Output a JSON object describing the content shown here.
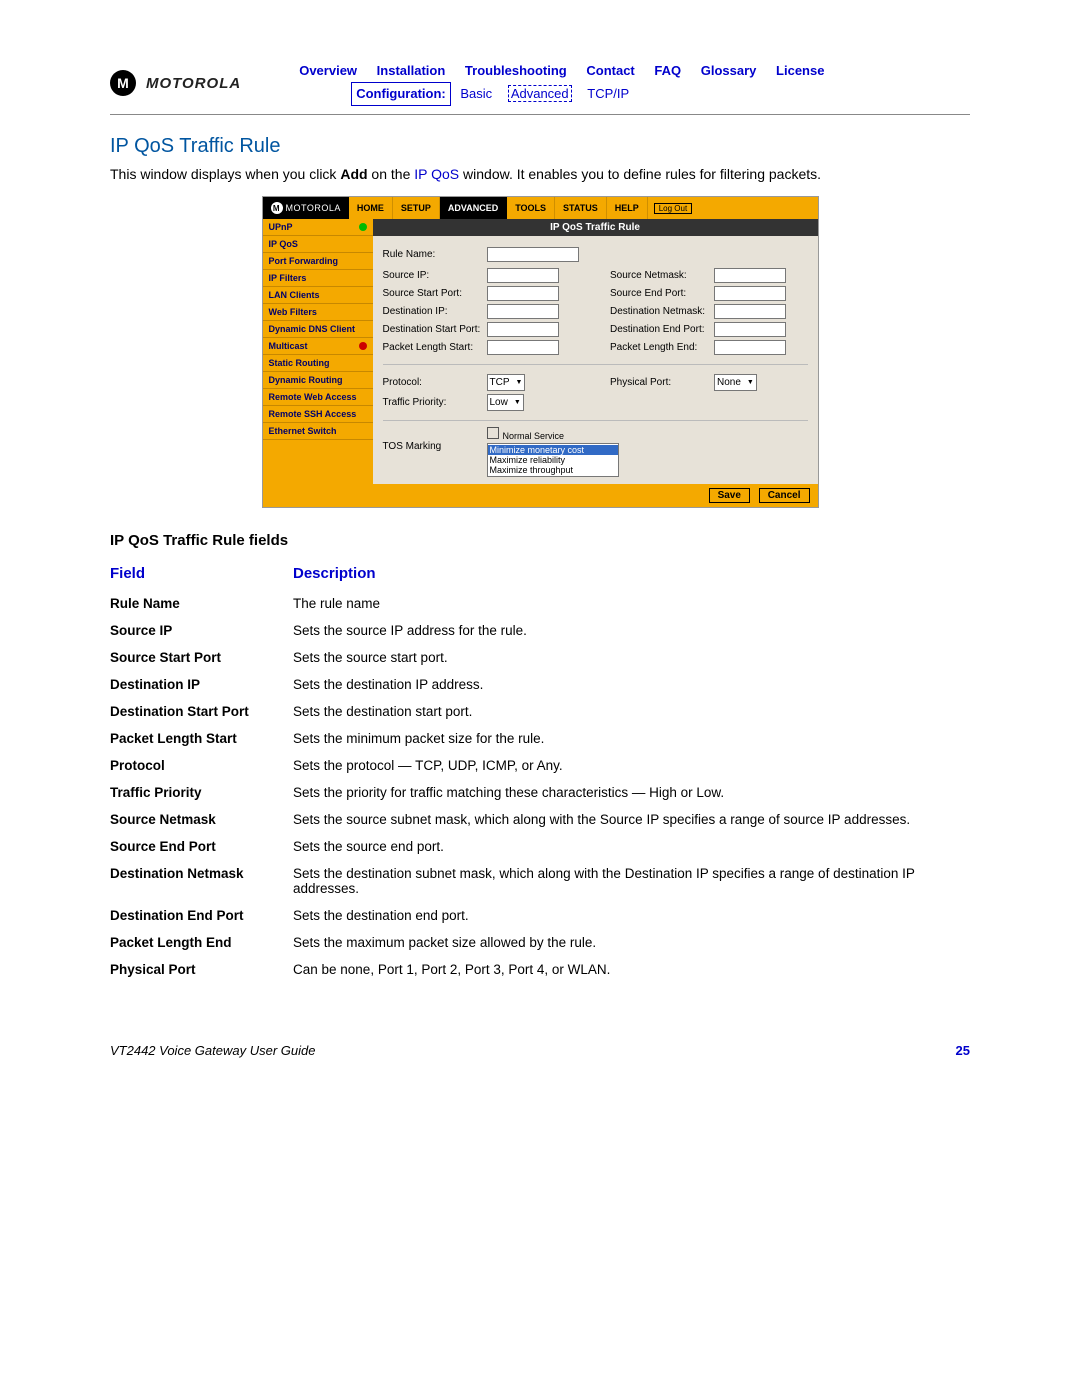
{
  "logo_text": "MOTOROLA",
  "top_nav": {
    "overview": "Overview",
    "installation": "Installation",
    "troubleshooting": "Troubleshooting",
    "contact": "Contact",
    "faq": "FAQ",
    "glossary": "Glossary",
    "license": "License",
    "configuration_label": "Configuration:",
    "basic": "Basic",
    "advanced": "Advanced",
    "tcpip": "TCP/IP"
  },
  "page_title": "IP QoS Traffic Rule",
  "intro_part1": "This window displays when you click ",
  "intro_add": "Add",
  "intro_part2": " on the ",
  "intro_link": "IP QoS",
  "intro_part3": " window. It enables you to define rules for filtering packets.",
  "screenshot": {
    "logo": "MOTOROLA",
    "tabs": {
      "home": "HOME",
      "setup": "SETUP",
      "advanced": "ADVANCED",
      "tools": "TOOLS",
      "status": "STATUS",
      "help": "HELP",
      "logout": "Log Out"
    },
    "side": {
      "upnp": "UPnP",
      "ipqos": "IP QoS",
      "portfwd": "Port Forwarding",
      "ipfilters": "IP Filters",
      "lanclients": "LAN Clients",
      "webfilters": "Web Filters",
      "dyndns": "Dynamic DNS Client",
      "multicast": "Multicast",
      "staticrouting": "Static Routing",
      "dynrouting": "Dynamic Routing",
      "remoteweb": "Remote Web Access",
      "remotessh": "Remote SSH Access",
      "ethswitch": "Ethernet Switch"
    },
    "title_bar": "IP QoS Traffic Rule",
    "form": {
      "rule_name": "Rule Name:",
      "source_ip": "Source IP:",
      "source_netmask": "Source Netmask:",
      "source_start_port": "Source Start Port:",
      "source_end_port": "Source End Port:",
      "dest_ip": "Destination IP:",
      "dest_netmask": "Destination Netmask:",
      "dest_start_port": "Destination Start Port:",
      "dest_end_port": "Destination End Port:",
      "pkt_len_start": "Packet Length Start:",
      "pkt_len_end": "Packet Length End:",
      "protocol": "Protocol:",
      "protocol_val": "TCP",
      "physical_port": "Physical Port:",
      "physical_port_val": "None",
      "traffic_priority": "Traffic Priority:",
      "traffic_priority_val": "Low",
      "normal_service": "Normal Service",
      "tos_marking": "TOS Marking",
      "tos_opt1": "Minimize monetary cost",
      "tos_opt2": "Maximize reliability",
      "tos_opt3": "Maximize throughput"
    },
    "save": "Save",
    "cancel": "Cancel"
  },
  "subheading": "IP QoS Traffic Rule fields",
  "table_header": {
    "field": "Field",
    "description": "Description"
  },
  "fields": [
    {
      "name": "Rule Name",
      "desc": "The rule name"
    },
    {
      "name": "Source IP",
      "desc": "Sets the source IP address for the rule."
    },
    {
      "name": "Source Start Port",
      "desc": "Sets the source start port."
    },
    {
      "name": "Destination IP",
      "desc": "Sets the destination IP address."
    },
    {
      "name": "Destination Start Port",
      "desc": "Sets the destination start port."
    },
    {
      "name": "Packet Length Start",
      "desc": "Sets the minimum packet size for the rule."
    },
    {
      "name": "Protocol",
      "desc": "Sets the protocol — TCP, UDP, ICMP, or Any."
    },
    {
      "name": "Traffic Priority",
      "desc": "Sets the priority for traffic matching these characteristics — High or Low."
    },
    {
      "name": "Source Netmask",
      "desc": "Sets the source subnet mask, which along with the Source IP specifies a range of source IP addresses."
    },
    {
      "name": "Source End Port",
      "desc": "Sets the source end port."
    },
    {
      "name": "Destination Netmask",
      "desc": "Sets the destination subnet mask, which along with the Destination IP specifies a range of destination IP addresses."
    },
    {
      "name": "Destination End Port",
      "desc": "Sets the destination end port."
    },
    {
      "name": "Packet Length End",
      "desc": "Sets the maximum packet size allowed by the rule."
    },
    {
      "name": "Physical Port",
      "desc": "Can be none, Port 1, Port 2, Port 3, Port 4, or WLAN."
    }
  ],
  "footer": {
    "doc": "VT2442 Voice Gateway User Guide",
    "page": "25"
  }
}
